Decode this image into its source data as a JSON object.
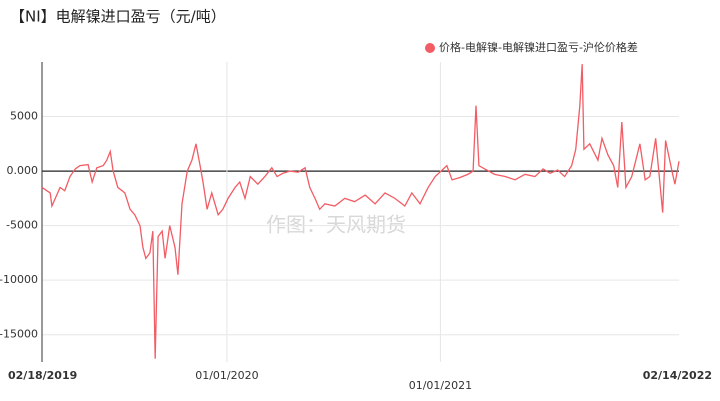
{
  "chart_data": {
    "type": "line",
    "title": "【NI】电解镍进口盈亏（元/吨）",
    "watermark": "作图：天风期货",
    "x": [
      "02/18/2019",
      "03/04/2019",
      "03/07/2019",
      "03/21/2019",
      "03/29/2019",
      "04/07/2019",
      "04/16/2019",
      "04/24/2019",
      "05/08/2019",
      "05/15/2019",
      "05/23/2019",
      "06/03/2019",
      "06/09/2019",
      "06/15/2019",
      "06/20/2019",
      "06/28/2019",
      "07/10/2019",
      "07/19/2019",
      "07/27/2019",
      "08/05/2019",
      "08/10/2019",
      "08/15/2019",
      "08/22/2019",
      "08/27/2019",
      "08/31/2019",
      "09/05/2019",
      "09/12/2019",
      "09/17/2019",
      "09/25/2019",
      "10/04/2019",
      "10/09/2019",
      "10/16/2019",
      "10/25/2019",
      "11/02/2019",
      "11/09/2019",
      "11/16/2019",
      "11/21/2019",
      "11/28/2019",
      "12/06/2019",
      "12/17/2019",
      "12/25/2019",
      "01/03/2020",
      "01/15/2020",
      "01/23/2020",
      "02/01/2020",
      "02/10/2020",
      "02/23/2020",
      "03/06/2020",
      "03/18/2020",
      "03/27/2020",
      "04/06/2020",
      "04/18/2020",
      "05/02/2020",
      "05/14/2020",
      "05/22/2020",
      "05/31/2020",
      "06/08/2020",
      "06/17/2020",
      "07/04/2020",
      "07/21/2020",
      "08/07/2020",
      "08/25/2020",
      "09/11/2020",
      "09/28/2020",
      "10/15/2020",
      "11/01/2020",
      "11/13/2020",
      "11/27/2020",
      "12/11/2020",
      "12/23/2020",
      "01/02/2021",
      "01/12/2021",
      "01/21/2021",
      "02/03/2021",
      "02/17/2021",
      "02/26/2021",
      "03/03/2021",
      "03/08/2021",
      "03/18/2021",
      "04/04/2021",
      "04/22/2021",
      "05/09/2021",
      "05/26/2021",
      "06/12/2021",
      "06/26/2021",
      "07/08/2021",
      "07/21/2021",
      "08/02/2021",
      "08/14/2021",
      "08/21/2021",
      "08/28/2021",
      "09/01/2021",
      "09/04/2021",
      "09/14/2021",
      "09/28/2021",
      "10/05/2021",
      "10/15/2021",
      "10/25/2021",
      "11/01/2021",
      "11/08/2021",
      "11/15/2021",
      "11/25/2021",
      "12/09/2021",
      "12/18/2021",
      "12/26/2021",
      "01/05/2022",
      "01/17/2022",
      "01/22/2022",
      "02/02/2022",
      "02/07/2022",
      "02/14/2022"
    ],
    "series": [
      {
        "name": "价格-电解镍-电解镍进口盈亏-沪伦价格差",
        "color": "#f25c64",
        "values": [
          -1500,
          -2000,
          -3200,
          -1500,
          -1800,
          -500,
          200,
          500,
          600,
          -1000,
          300,
          500,
          1000,
          1800,
          0,
          -1500,
          -2000,
          -3500,
          -4000,
          -5000,
          -7000,
          -8000,
          -7500,
          -5500,
          -17200,
          -6000,
          -5500,
          -8000,
          -5000,
          -7000,
          -9500,
          -3000,
          0,
          1000,
          2500,
          500,
          -1000,
          -3500,
          -2000,
          -4000,
          -3500,
          -2500,
          -1500,
          -1000,
          -2500,
          -500,
          -1200,
          -500,
          300,
          -500,
          -200,
          0,
          -100,
          300,
          -1500,
          -2500,
          -3500,
          -3000,
          -3200,
          -2500,
          -2800,
          -2200,
          -3000,
          -2000,
          -2500,
          -3200,
          -2000,
          -3000,
          -1500,
          -500,
          0,
          500,
          -800,
          -600,
          -300,
          0,
          6000,
          500,
          200,
          -300,
          -500,
          -800,
          -300,
          -500,
          200,
          -200,
          100,
          -500,
          500,
          2000,
          6000,
          9800,
          2000,
          2500,
          1000,
          3000,
          1500,
          500,
          -1500,
          4500,
          -1500,
          -500,
          2500,
          -800,
          -500,
          3000,
          -3800,
          2800,
          0,
          -1200,
          900
        ]
      }
    ],
    "xlim": [
      "02/18/2019",
      "02/14/2022"
    ],
    "xticks": [
      "02/18/2019",
      "01/01/2020",
      "01/01/2021",
      "02/14/2022"
    ],
    "ylim": [
      -17500,
      10000
    ],
    "yticks": [
      5000,
      {
        "value": 0,
        "label": "0.000"
      },
      -5000,
      -10000,
      -15000
    ],
    "grid": true,
    "legend": "top-right"
  }
}
